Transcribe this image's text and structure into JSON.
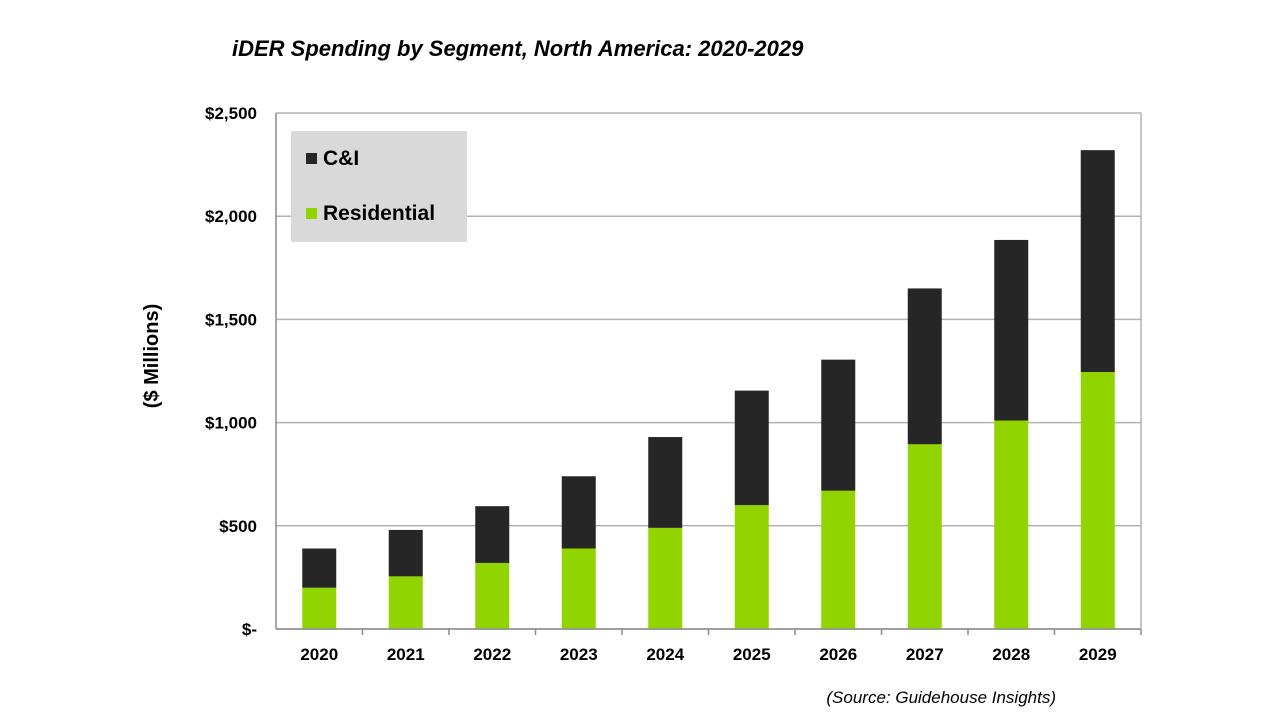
{
  "chart_data": {
    "type": "bar",
    "stacked": true,
    "title": "iDER Spending by Segment, North America: 2020-2029",
    "xlabel": "",
    "ylabel": "($ Millions)",
    "categories": [
      "2020",
      "2021",
      "2022",
      "2023",
      "2024",
      "2025",
      "2026",
      "2027",
      "2028",
      "2029"
    ],
    "series": [
      {
        "name": "Residential",
        "color": "#92d400",
        "values": [
          200,
          255,
          320,
          390,
          490,
          600,
          670,
          895,
          1010,
          1245
        ]
      },
      {
        "name": "C&I",
        "color": "#262626",
        "values": [
          190,
          225,
          275,
          350,
          440,
          555,
          635,
          755,
          875,
          1075
        ]
      }
    ],
    "ylim": [
      0,
      2500
    ],
    "yticks": [
      0,
      500,
      1000,
      1500,
      2000,
      2500
    ],
    "ytick_labels": [
      "$-",
      "$500",
      "$1,000",
      "$1,500",
      "$2,000",
      "$2,500"
    ],
    "grid": true,
    "legend_position": "top-left",
    "legend_order": [
      "C&I",
      "Residential"
    ],
    "source": "(Source: Guidehouse Insights)"
  }
}
